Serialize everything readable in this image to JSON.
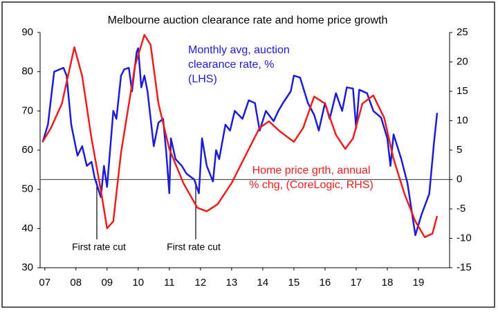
{
  "chart_data": {
    "type": "line",
    "title": "Melbourne auction clearance rate and home price growth",
    "xlim": [
      2006.85,
      2020
    ],
    "xticks": [
      {
        "value": 2007,
        "label": "07"
      },
      {
        "value": 2008,
        "label": "08"
      },
      {
        "value": 2009,
        "label": "09"
      },
      {
        "value": 2010,
        "label": "10"
      },
      {
        "value": 2011,
        "label": "11"
      },
      {
        "value": 2012,
        "label": "12"
      },
      {
        "value": 2013,
        "label": "13"
      },
      {
        "value": 2014,
        "label": "14"
      },
      {
        "value": 2015,
        "label": "15"
      },
      {
        "value": 2016,
        "label": "16"
      },
      {
        "value": 2017,
        "label": "17"
      },
      {
        "value": 2018,
        "label": "18"
      },
      {
        "value": 2019,
        "label": "19"
      }
    ],
    "ylim": [
      30,
      90
    ],
    "yticks": [
      30,
      40,
      50,
      60,
      70,
      80,
      90
    ],
    "y2lim": [
      -15,
      25
    ],
    "y2ticks": [
      -15,
      -10,
      -5,
      0,
      5,
      10,
      15,
      20,
      25
    ],
    "series": [
      {
        "name": "Monthly avg, auction clearance rate, % (LHS)",
        "color": "#1c1cd6",
        "axis": "y",
        "x": [
          2006.93,
          2007.1,
          2007.3,
          2007.6,
          2007.7,
          2007.85,
          2008.05,
          2008.2,
          2008.35,
          2008.5,
          2008.6,
          2008.8,
          2008.9,
          2009.0,
          2009.2,
          2009.3,
          2009.45,
          2009.55,
          2009.7,
          2009.8,
          2009.95,
          2010.0,
          2010.1,
          2010.2,
          2010.3,
          2010.5,
          2010.65,
          2010.8,
          2010.9,
          2011.0,
          2011.05,
          2011.2,
          2011.4,
          2011.55,
          2011.8,
          2011.95,
          2012.05,
          2012.2,
          2012.4,
          2012.5,
          2012.6,
          2012.8,
          2012.95,
          2013.1,
          2013.35,
          2013.55,
          2013.75,
          2013.9,
          2014.1,
          2014.35,
          2014.5,
          2014.65,
          2014.9,
          2015.0,
          2015.2,
          2015.45,
          2015.65,
          2015.8,
          2016.0,
          2016.15,
          2016.35,
          2016.55,
          2016.7,
          2016.9,
          2017.0,
          2017.1,
          2017.35,
          2017.55,
          2017.8,
          2018.0,
          2018.1,
          2018.2,
          2018.45,
          2018.65,
          2018.9,
          2019.1,
          2019.35,
          2019.5,
          2019.6
        ],
        "values": [
          62,
          66.5,
          80,
          81,
          79,
          66.5,
          58.6,
          61,
          56,
          57,
          53,
          48,
          56,
          50.6,
          70,
          68,
          79,
          80.6,
          81,
          75,
          85,
          86,
          76,
          79,
          75,
          61,
          67,
          68,
          59.5,
          49,
          63,
          57.7,
          56,
          54,
          52.5,
          49,
          63,
          56,
          52,
          60,
          57.7,
          66.5,
          65,
          70,
          68,
          72.7,
          72,
          65,
          70,
          67.4,
          70,
          72,
          75,
          79,
          78.5,
          72,
          69,
          65,
          72,
          68,
          74.5,
          70,
          76,
          75.7,
          65.6,
          75.4,
          74.5,
          70,
          68.3,
          63,
          56,
          64,
          57.7,
          51.5,
          38.3,
          43.6,
          48.9,
          62,
          69.5
        ]
      },
      {
        "name": "Home price grth, annual % chg, (CoreLogic, RHS)",
        "color": "#ee1c1c",
        "axis": "y2",
        "x": [
          2006.93,
          2007.2,
          2007.55,
          2007.95,
          2008.2,
          2008.5,
          2008.8,
          2009.0,
          2009.2,
          2009.45,
          2009.9,
          2010.2,
          2010.4,
          2010.65,
          2011.0,
          2011.45,
          2011.9,
          2012.2,
          2012.55,
          2013.0,
          2013.45,
          2013.9,
          2014.2,
          2014.55,
          2015.0,
          2015.3,
          2015.65,
          2016.0,
          2016.35,
          2016.65,
          2016.9,
          2017.2,
          2017.55,
          2017.9,
          2018.2,
          2018.55,
          2018.9,
          2019.2,
          2019.45,
          2019.6
        ],
        "values": [
          6.4,
          8.8,
          12.9,
          22.5,
          17.6,
          7,
          -1.8,
          -8.3,
          -7.1,
          4.6,
          19.4,
          24.6,
          22.9,
          12.9,
          5.2,
          -0.6,
          -4.8,
          -5.4,
          -4.2,
          -0.6,
          4.1,
          8.8,
          9.9,
          8.2,
          6.4,
          8.8,
          14.1,
          12.9,
          7.6,
          5.2,
          7,
          12.9,
          14.3,
          10.5,
          3.5,
          -2.4,
          -7.1,
          -9.8,
          -9.2,
          -6.2
        ]
      }
    ],
    "annotations": [
      "First rate cut",
      "First rate cut"
    ]
  }
}
